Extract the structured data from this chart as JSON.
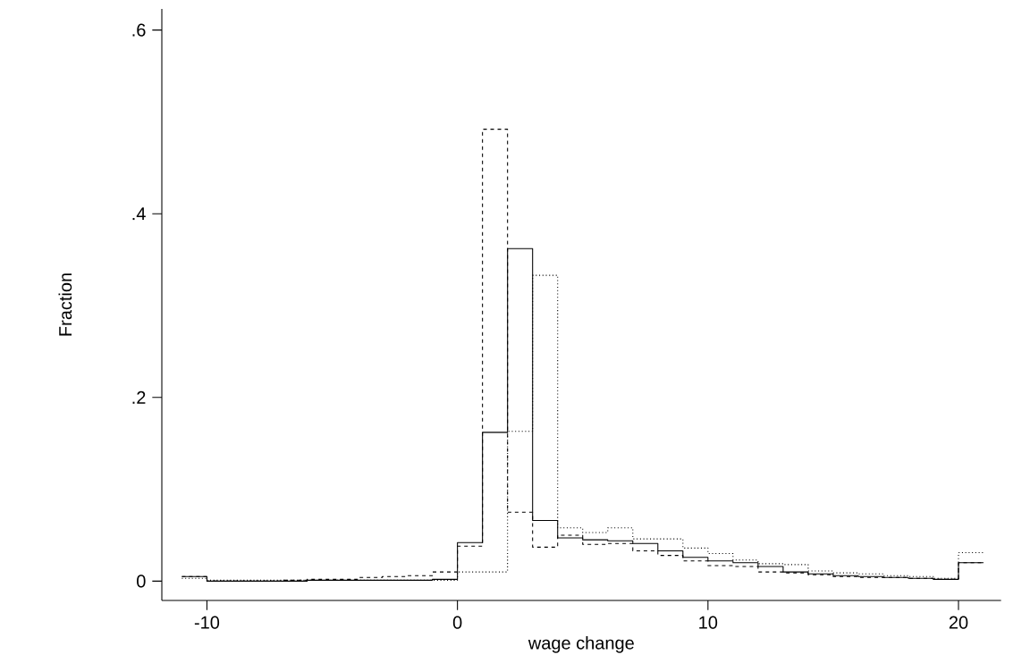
{
  "chart_data": {
    "type": "step",
    "xlabel": "wage change",
    "ylabel": "Fraction",
    "x": [
      -11,
      -10,
      -9,
      -8,
      -7,
      -6,
      -5,
      -4,
      -3,
      -2,
      -1,
      0,
      1,
      2,
      3,
      4,
      5,
      6,
      7,
      8,
      9,
      10,
      11,
      12,
      13,
      14,
      15,
      16,
      17,
      18,
      19,
      20,
      21
    ],
    "series": [
      {
        "color": "#000000",
        "line_style": "solid",
        "values": [
          0.005,
          0,
          0,
          0,
          0,
          0.001,
          0.001,
          0.001,
          0.001,
          0.001,
          0.002,
          0.042,
          0.162,
          0.362,
          0.066,
          0.047,
          0.045,
          0.044,
          0.041,
          0.033,
          0.026,
          0.022,
          0.02,
          0.016,
          0.01,
          0.008,
          0.006,
          0.005,
          0.004,
          0.003,
          0.002,
          0.02,
          0.02
        ]
      },
      {
        "color": "#000000",
        "line_style": "dashed",
        "values": [
          0.005,
          0,
          0,
          0,
          0.001,
          0.002,
          0.002,
          0.004,
          0.005,
          0.006,
          0.01,
          0.038,
          0.492,
          0.075,
          0.037,
          0.05,
          0.04,
          0.041,
          0.033,
          0.028,
          0.022,
          0.017,
          0.016,
          0.01,
          0.009,
          0.007,
          0.005,
          0.004,
          0.004,
          0.003,
          0.002,
          0.02,
          0.02
        ]
      },
      {
        "color": "#000000",
        "line_style": "dotted",
        "values": [
          0.003,
          0.001,
          0.001,
          0.001,
          0.001,
          0.001,
          0.001,
          0.001,
          0.001,
          0.001,
          0.001,
          0.01,
          0.01,
          0.163,
          0.333,
          0.058,
          0.053,
          0.058,
          0.046,
          0.046,
          0.036,
          0.03,
          0.023,
          0.019,
          0.018,
          0.011,
          0.009,
          0.008,
          0.006,
          0.005,
          0.003,
          0.031,
          0.031
        ]
      }
    ],
    "xlim": [
      -11.8,
      21.7
    ],
    "ylim": [
      -0.021,
      0.623
    ],
    "xticks": [
      -10,
      0,
      10,
      20
    ],
    "yticks": [
      0,
      {
        "value": 0.2,
        "label": ".2"
      },
      {
        "value": 0.4,
        "label": ".4"
      },
      {
        "value": 0.6,
        "label": ".6"
      }
    ],
    "grid": false
  }
}
